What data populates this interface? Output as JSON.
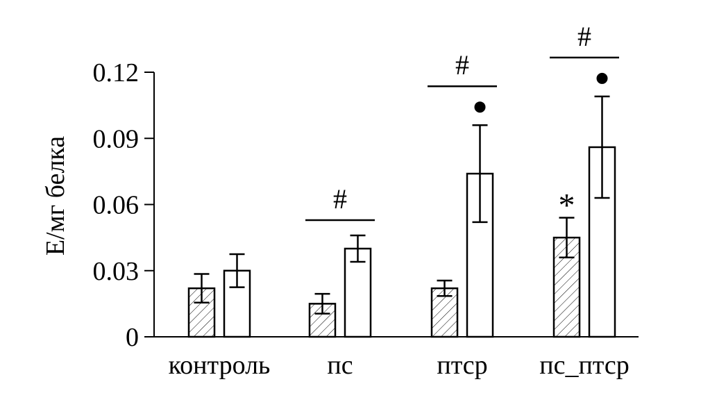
{
  "chart_data": {
    "type": "bar",
    "ylabel": "Е/мг белка",
    "xlabel": "",
    "ylim": [
      0,
      0.12
    ],
    "yticks": [
      {
        "value": 0,
        "label": "0"
      },
      {
        "value": 0.03,
        "label": "0.03"
      },
      {
        "value": 0.06,
        "label": "0.06"
      },
      {
        "value": 0.09,
        "label": "0.09"
      },
      {
        "value": 0.12,
        "label": "0.12"
      }
    ],
    "categories": [
      "контроль",
      "пс",
      "птср",
      "пс_птср"
    ],
    "series": [
      {
        "pattern": "hatched",
        "values": [
          0.022,
          0.015,
          0.022,
          0.045
        ],
        "errors": [
          0.0065,
          0.0045,
          0.0035,
          0.009
        ]
      },
      {
        "pattern": "open",
        "values": [
          0.03,
          0.04,
          0.074,
          0.086
        ],
        "errors": [
          0.0075,
          0.006,
          0.022,
          0.023
        ]
      }
    ],
    "annotations": {
      "hash": "#",
      "star": "*",
      "hash_groups": [
        1,
        2,
        3
      ],
      "dot_groups": [
        2,
        3
      ],
      "star_groups": [
        3
      ]
    },
    "grid": false,
    "legend": "none"
  }
}
